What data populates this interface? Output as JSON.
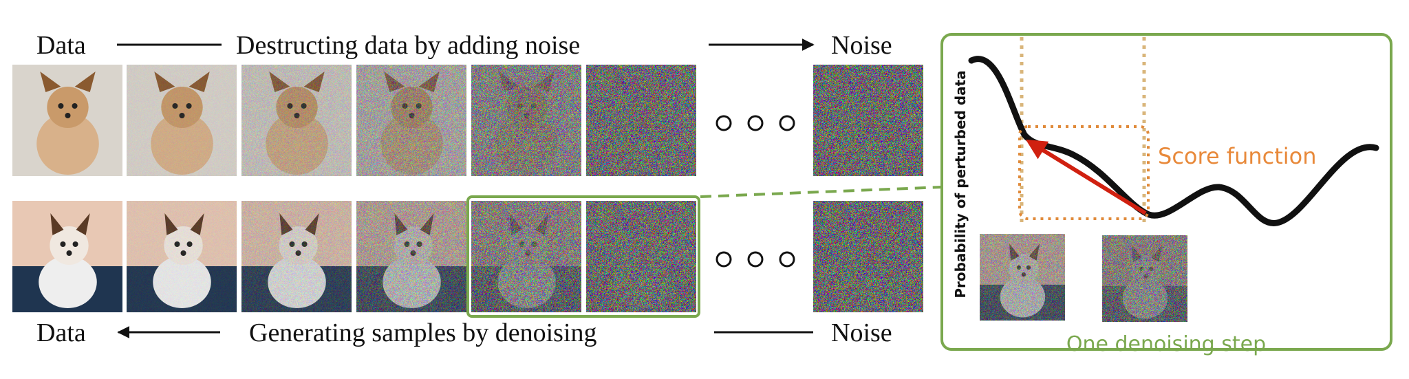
{
  "top_row": {
    "left_label": "Data",
    "caption": "Destructing data by adding noise",
    "right_label": "Noise"
  },
  "bottom_row": {
    "left_label": "Data",
    "caption": "Generating samples by denoising",
    "right_label": "Noise"
  },
  "score_panel": {
    "y_axis_label": "Probability of perturbed data",
    "annotation": "Score function",
    "caption": "One denoising step"
  }
}
